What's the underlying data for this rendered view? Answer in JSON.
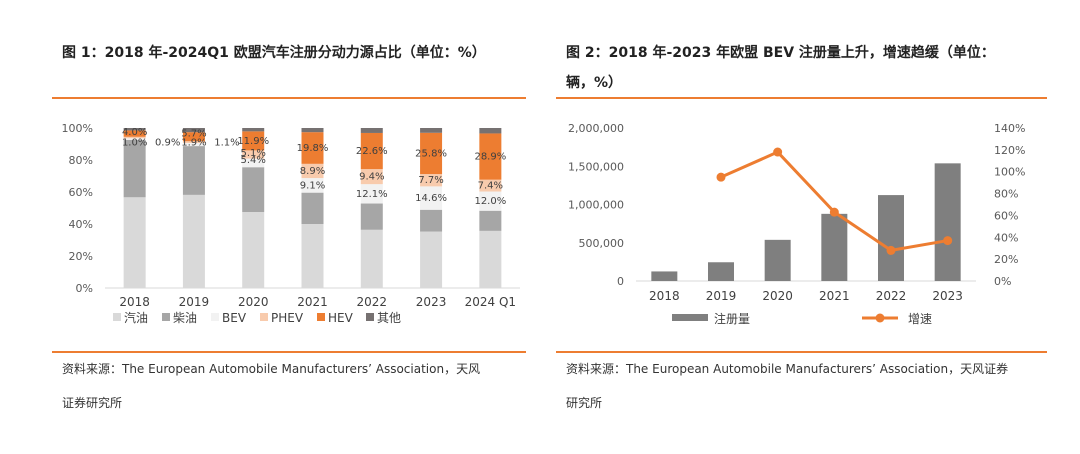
{
  "figure1": {
    "title_line1": "图 1：2018 年-2024Q1 欧盟汽车注册分动力源占比（单位：%）",
    "source_line1": "资料来源：The European Automobile Manufacturers’ Association，天风",
    "source_line2": "证券研究所"
  },
  "figure2": {
    "title_line1": "图 2：2018 年-2023 年欧盟 BEV 注册量上升，增速趋缓（单位：",
    "title_line2": "辆，%）",
    "source_line1": "资料来源：The European Automobile Manufacturers’ Association，天风证券",
    "source_line2": "研究所"
  },
  "colors": {
    "accent": "#ED7D31",
    "gasoline": "#D9D9D9",
    "diesel": "#A6A6A6",
    "bev": "#F2F2F2",
    "phev": "#F8CBAD",
    "hev": "#ED7D31",
    "other": "#767171",
    "bar": "#7F7F7F",
    "axis": "#D9D9D9",
    "grid": "#E7E6E6"
  },
  "chart_data": [
    {
      "type": "bar",
      "stacked": true,
      "title": "图 1：2018 年-2024Q1 欧盟汽车注册分动力源占比（单位：%）",
      "categories": [
        "2018",
        "2019",
        "2020",
        "2021",
        "2022",
        "2023",
        "2024 Q1"
      ],
      "ylim": [
        0,
        100
      ],
      "yticks": [
        "0%",
        "20%",
        "40%",
        "60%",
        "80%",
        "100%"
      ],
      "legend_position": "bottom",
      "series": [
        {
          "name": "汽油",
          "values": [
            56.7,
            58.2,
            47.5,
            40.0,
            36.4,
            35.3,
            35.7
          ]
        },
        {
          "name": "柴油",
          "values": [
            35.9,
            30.5,
            28.0,
            19.6,
            16.4,
            13.6,
            12.6
          ]
        },
        {
          "name": "BEV",
          "values": [
            1.0,
            1.9,
            5.4,
            9.1,
            12.1,
            14.6,
            12.0
          ]
        },
        {
          "name": "PHEV",
          "values": [
            0.9,
            1.1,
            5.1,
            8.9,
            9.4,
            7.7,
            7.4
          ]
        },
        {
          "name": "HEV",
          "values": [
            4.0,
            5.7,
            11.9,
            19.8,
            22.6,
            25.8,
            28.9
          ]
        },
        {
          "name": "其他",
          "values": [
            1.5,
            2.6,
            2.1,
            2.6,
            3.1,
            3.0,
            3.4
          ]
        }
      ],
      "data_labels": [
        {
          "category": "2018",
          "series": "BEV",
          "text": "1.0%"
        },
        {
          "category": "2018",
          "series": "PHEV",
          "text": "0.9%"
        },
        {
          "category": "2018",
          "series": "HEV",
          "text": "4.0%"
        },
        {
          "category": "2019",
          "series": "BEV",
          "text": "1.9%"
        },
        {
          "category": "2019",
          "series": "PHEV",
          "text": "1.1%"
        },
        {
          "category": "2019",
          "series": "HEV",
          "text": "5.7%"
        },
        {
          "category": "2020",
          "series": "BEV",
          "text": "5.4%"
        },
        {
          "category": "2020",
          "series": "PHEV",
          "text": "5.1%"
        },
        {
          "category": "2020",
          "series": "HEV",
          "text": "11.9%"
        },
        {
          "category": "2021",
          "series": "BEV",
          "text": "9.1%"
        },
        {
          "category": "2021",
          "series": "PHEV",
          "text": "8.9%"
        },
        {
          "category": "2021",
          "series": "HEV",
          "text": "19.8%"
        },
        {
          "category": "2022",
          "series": "BEV",
          "text": "12.1%"
        },
        {
          "category": "2022",
          "series": "PHEV",
          "text": "9.4%"
        },
        {
          "category": "2022",
          "series": "HEV",
          "text": "22.6%"
        },
        {
          "category": "2023",
          "series": "BEV",
          "text": "14.6%"
        },
        {
          "category": "2023",
          "series": "PHEV",
          "text": "7.7%"
        },
        {
          "category": "2023",
          "series": "HEV",
          "text": "25.8%"
        },
        {
          "category": "2024 Q1",
          "series": "BEV",
          "text": "12.0%"
        },
        {
          "category": "2024 Q1",
          "series": "PHEV",
          "text": "7.4%"
        },
        {
          "category": "2024 Q1",
          "series": "HEV",
          "text": "28.9%"
        }
      ]
    },
    {
      "type": "bar+line",
      "title": "图 2：2018 年-2023 年欧盟 BEV 注册量上升，增速趋缓（单位：辆，%）",
      "categories": [
        "2018",
        "2019",
        "2020",
        "2021",
        "2022",
        "2023"
      ],
      "series": [
        {
          "name": "注册量",
          "type": "bar",
          "axis": "left",
          "values": [
            125000,
            245000,
            538000,
            878000,
            1123000,
            1538000
          ]
        },
        {
          "name": "增速",
          "type": "line",
          "axis": "right",
          "values": [
            null,
            95,
            118,
            63,
            28,
            37
          ]
        }
      ],
      "ylim_left": [
        0,
        2000000
      ],
      "yticks_left": [
        "0",
        "500,000",
        "1,000,000",
        "1,500,000",
        "2,000,000"
      ],
      "ylim_right": [
        0,
        140
      ],
      "yticks_right": [
        "0%",
        "20%",
        "40%",
        "60%",
        "80%",
        "100%",
        "120%",
        "140%"
      ],
      "legend_position": "bottom"
    }
  ]
}
